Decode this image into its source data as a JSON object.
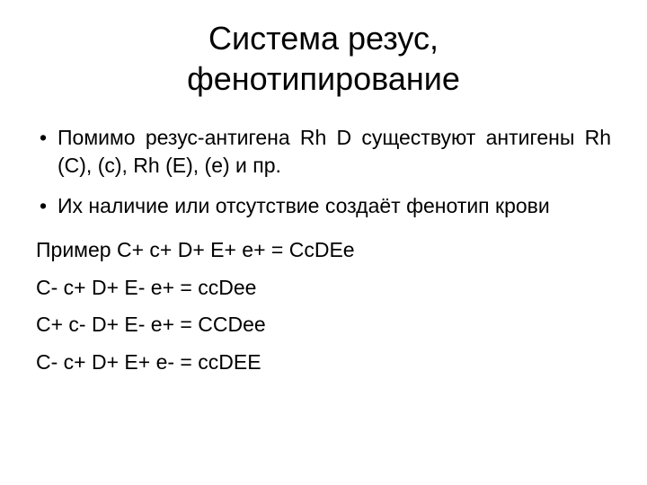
{
  "title_line1": "Система резус,",
  "title_line2": "фенотипирование",
  "bullets": [
    "Помимо резус-антигена Rh D существуют антигены Rh (С), (с), Rh (E), (е) и пр.",
    "Их наличие или отсутствие создаёт фенотип крови"
  ],
  "examples": [
    "Пример С+ c+ D+ E+ e+ = CcDEe",
    "С- c+ D+ E- e+ = ccDеe",
    "С+ c- D+ E- e+ = CCDеe",
    "С- c+ D+ E+ e- = ccDEE"
  ],
  "colors": {
    "background": "#ffffff",
    "text": "#000000"
  },
  "typography": {
    "title_fontsize": 36,
    "body_fontsize": 23,
    "font_family": "Arial"
  }
}
